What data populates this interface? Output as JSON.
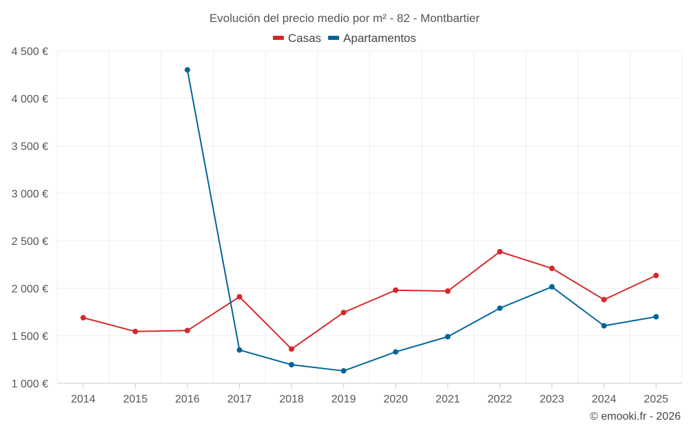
{
  "chart_data": {
    "type": "line",
    "title": "Evolución del precio medio por m² - 82 - Montbartier",
    "categories": [
      "2014",
      "2015",
      "2016",
      "2017",
      "2018",
      "2019",
      "2020",
      "2021",
      "2022",
      "2023",
      "2024",
      "2025"
    ],
    "ylim": [
      1000,
      4500
    ],
    "yticks": [
      1000,
      1500,
      2000,
      2500,
      3000,
      3500,
      4000,
      4500
    ],
    "ytick_labels": [
      "1 000 €",
      "1 500 €",
      "2 000 €",
      "2 500 €",
      "3 000 €",
      "3 500 €",
      "4 000 €",
      "4 500 €"
    ],
    "xlabel": "",
    "ylabel": "",
    "grid": true,
    "legend_position": "top-center",
    "series": [
      {
        "name": "Casas",
        "color": "#d62728",
        "values": [
          1690,
          1545,
          1555,
          1910,
          1360,
          1745,
          1980,
          1970,
          2385,
          2210,
          1880,
          2135
        ]
      },
      {
        "name": "Apartamentos",
        "color": "#00649b",
        "values": [
          null,
          null,
          4300,
          1350,
          1195,
          1130,
          1330,
          1490,
          1790,
          2015,
          1605,
          1700
        ]
      }
    ]
  },
  "credit": "© emooki.fr - 2026"
}
